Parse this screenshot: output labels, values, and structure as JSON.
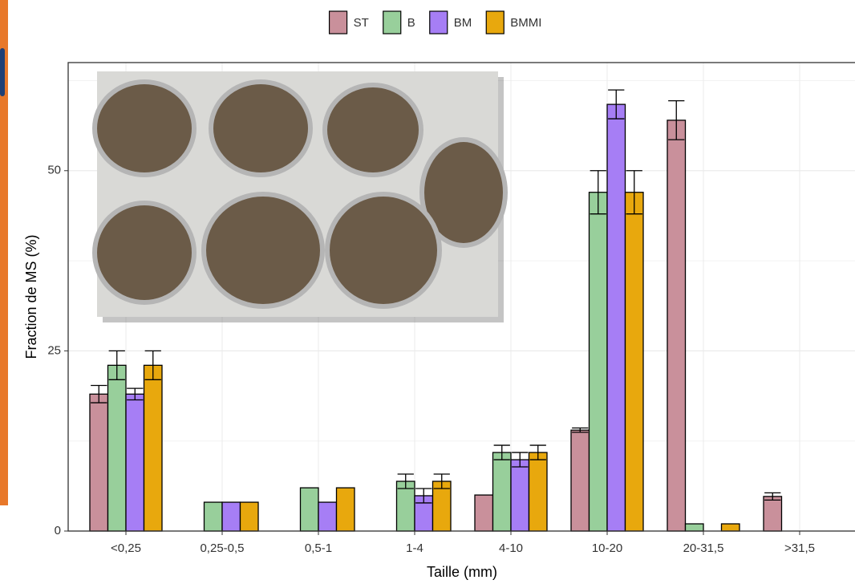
{
  "chart_data": {
    "type": "bar",
    "x_label": "Taille (mm)",
    "y_label": "Fraction de MS (%)",
    "categories": [
      "<0,25",
      "0,25-0,5",
      "0,5-1",
      "1-4",
      "4-10",
      "10-20",
      "20-31,5",
      ">31,5"
    ],
    "series": [
      {
        "name": "ST",
        "color": "#c9909b",
        "values": [
          19,
          null,
          null,
          null,
          5,
          14,
          57,
          4.8
        ],
        "errors": [
          1.2,
          null,
          null,
          null,
          null,
          0.3,
          2.7,
          0.5
        ]
      },
      {
        "name": "B",
        "color": "#98cf9b",
        "values": [
          23,
          4,
          6,
          6.9,
          10.9,
          47,
          1,
          null
        ],
        "errors": [
          2,
          null,
          null,
          1,
          1,
          3,
          null,
          null
        ]
      },
      {
        "name": "BM",
        "color": "#a67ef5",
        "values": [
          19,
          4,
          4,
          4.9,
          9.9,
          59.2,
          null,
          null
        ],
        "errors": [
          0.8,
          null,
          null,
          1,
          1,
          2,
          null,
          null
        ]
      },
      {
        "name": "BMMI",
        "color": "#e8a80d",
        "values": [
          23,
          4,
          6,
          6.9,
          10.9,
          47,
          1,
          null
        ],
        "errors": [
          2,
          null,
          null,
          1,
          1,
          3,
          null,
          null
        ]
      }
    ],
    "ylim": [
      0,
      65
    ],
    "yticks": [
      0,
      25,
      50
    ],
    "yminor": [
      12.5,
      37.5,
      62.5
    ],
    "grid": true,
    "legend": "top"
  }
}
